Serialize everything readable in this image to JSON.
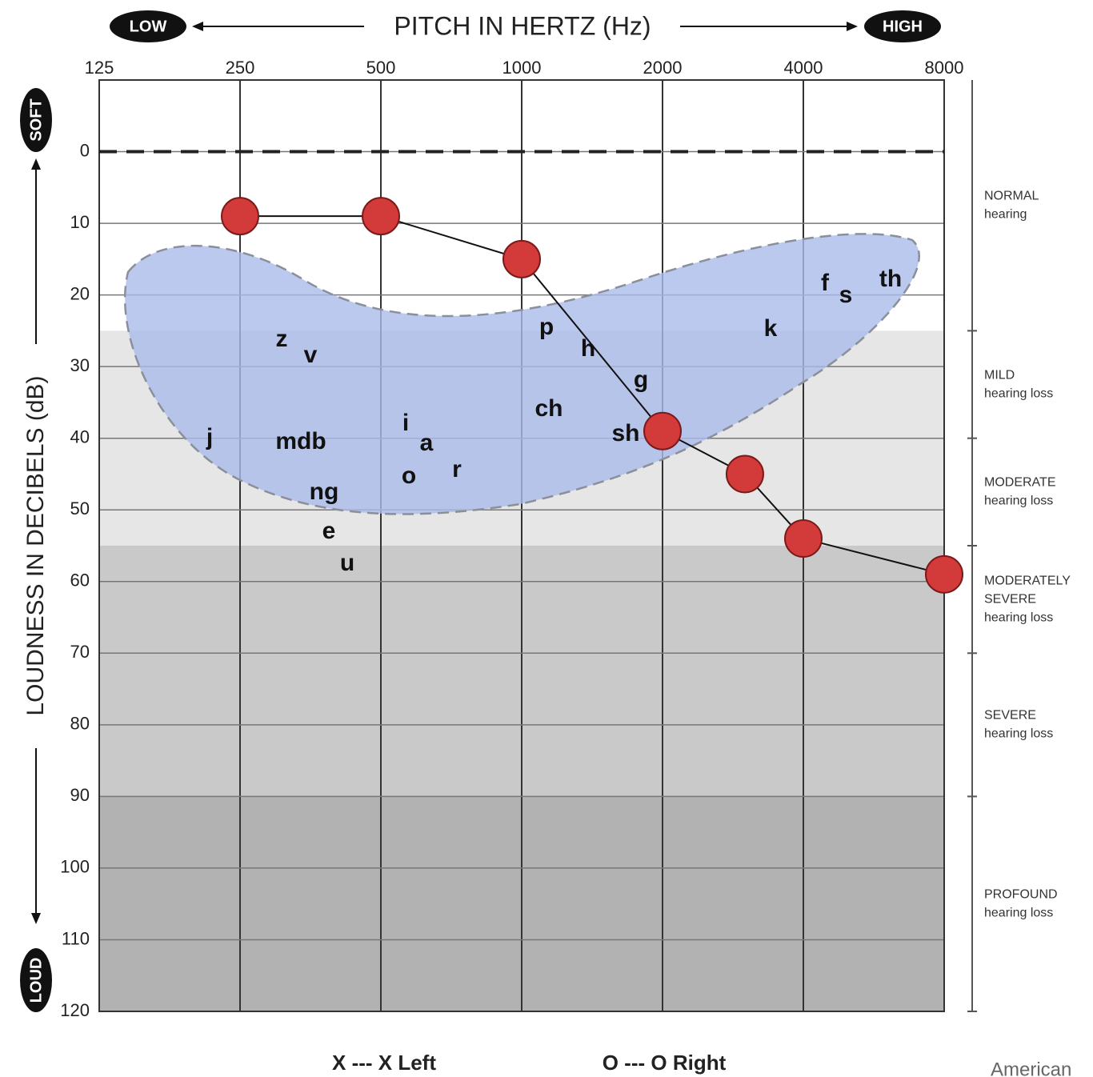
{
  "chart_data": {
    "type": "line",
    "title": "PITCH IN HERTZ (Hz)",
    "x_low_label": "LOW",
    "x_high_label": "HIGH",
    "y_label": "LOUDNESS IN DECIBELS (dB)",
    "y_top_label": "SOFT",
    "y_bottom_label": "LOUD",
    "x": [
      250,
      500,
      1000,
      2000,
      3000,
      4000,
      8000
    ],
    "series": [
      {
        "color": "#d33a3a",
        "values": [
          9,
          9,
          15,
          39,
          45,
          54,
          59
        ]
      }
    ],
    "legend": [
      "X --- X Left",
      "O --- O Right"
    ],
    "xlim": [
      125,
      8000
    ],
    "xticks": [
      125,
      250,
      500,
      1000,
      2000,
      4000,
      8000
    ],
    "xscale": "log",
    "ylim": [
      -10,
      120
    ],
    "yticks": [
      0,
      10,
      20,
      30,
      40,
      50,
      60,
      70,
      80,
      90,
      100,
      110,
      120
    ],
    "y_inverted": true,
    "grid": true,
    "reference_line": 0,
    "bands": [
      {
        "range": [
          25,
          55
        ],
        "color": "#e6e6e6"
      },
      {
        "range": [
          55,
          90
        ],
        "color": "#c9c9c9"
      },
      {
        "range": [
          90,
          120
        ],
        "color": "#b2b2b2"
      }
    ],
    "hearing_levels": [
      {
        "label": [
          "NORMAL",
          "hearing"
        ],
        "range": [
          -10,
          25
        ]
      },
      {
        "label": [
          "MILD",
          "hearing loss"
        ],
        "range": [
          25,
          40
        ]
      },
      {
        "label": [
          "MODERATE",
          "hearing loss"
        ],
        "range": [
          40,
          55
        ]
      },
      {
        "label": [
          "MODERATELY",
          "SEVERE",
          "hearing loss"
        ],
        "range": [
          55,
          70
        ]
      },
      {
        "label": [
          "SEVERE",
          "hearing loss"
        ],
        "range": [
          70,
          90
        ]
      },
      {
        "label": [
          "PROFOUND",
          "hearing loss"
        ],
        "range": [
          90,
          120
        ]
      }
    ],
    "speech_sounds": [
      "j",
      "z",
      "v",
      "mdb",
      "ng",
      "e",
      "u",
      "i",
      "a",
      "o",
      "r",
      "p",
      "h",
      "ch",
      "g",
      "sh",
      "k",
      "f",
      "s",
      "th"
    ],
    "source": "American"
  }
}
